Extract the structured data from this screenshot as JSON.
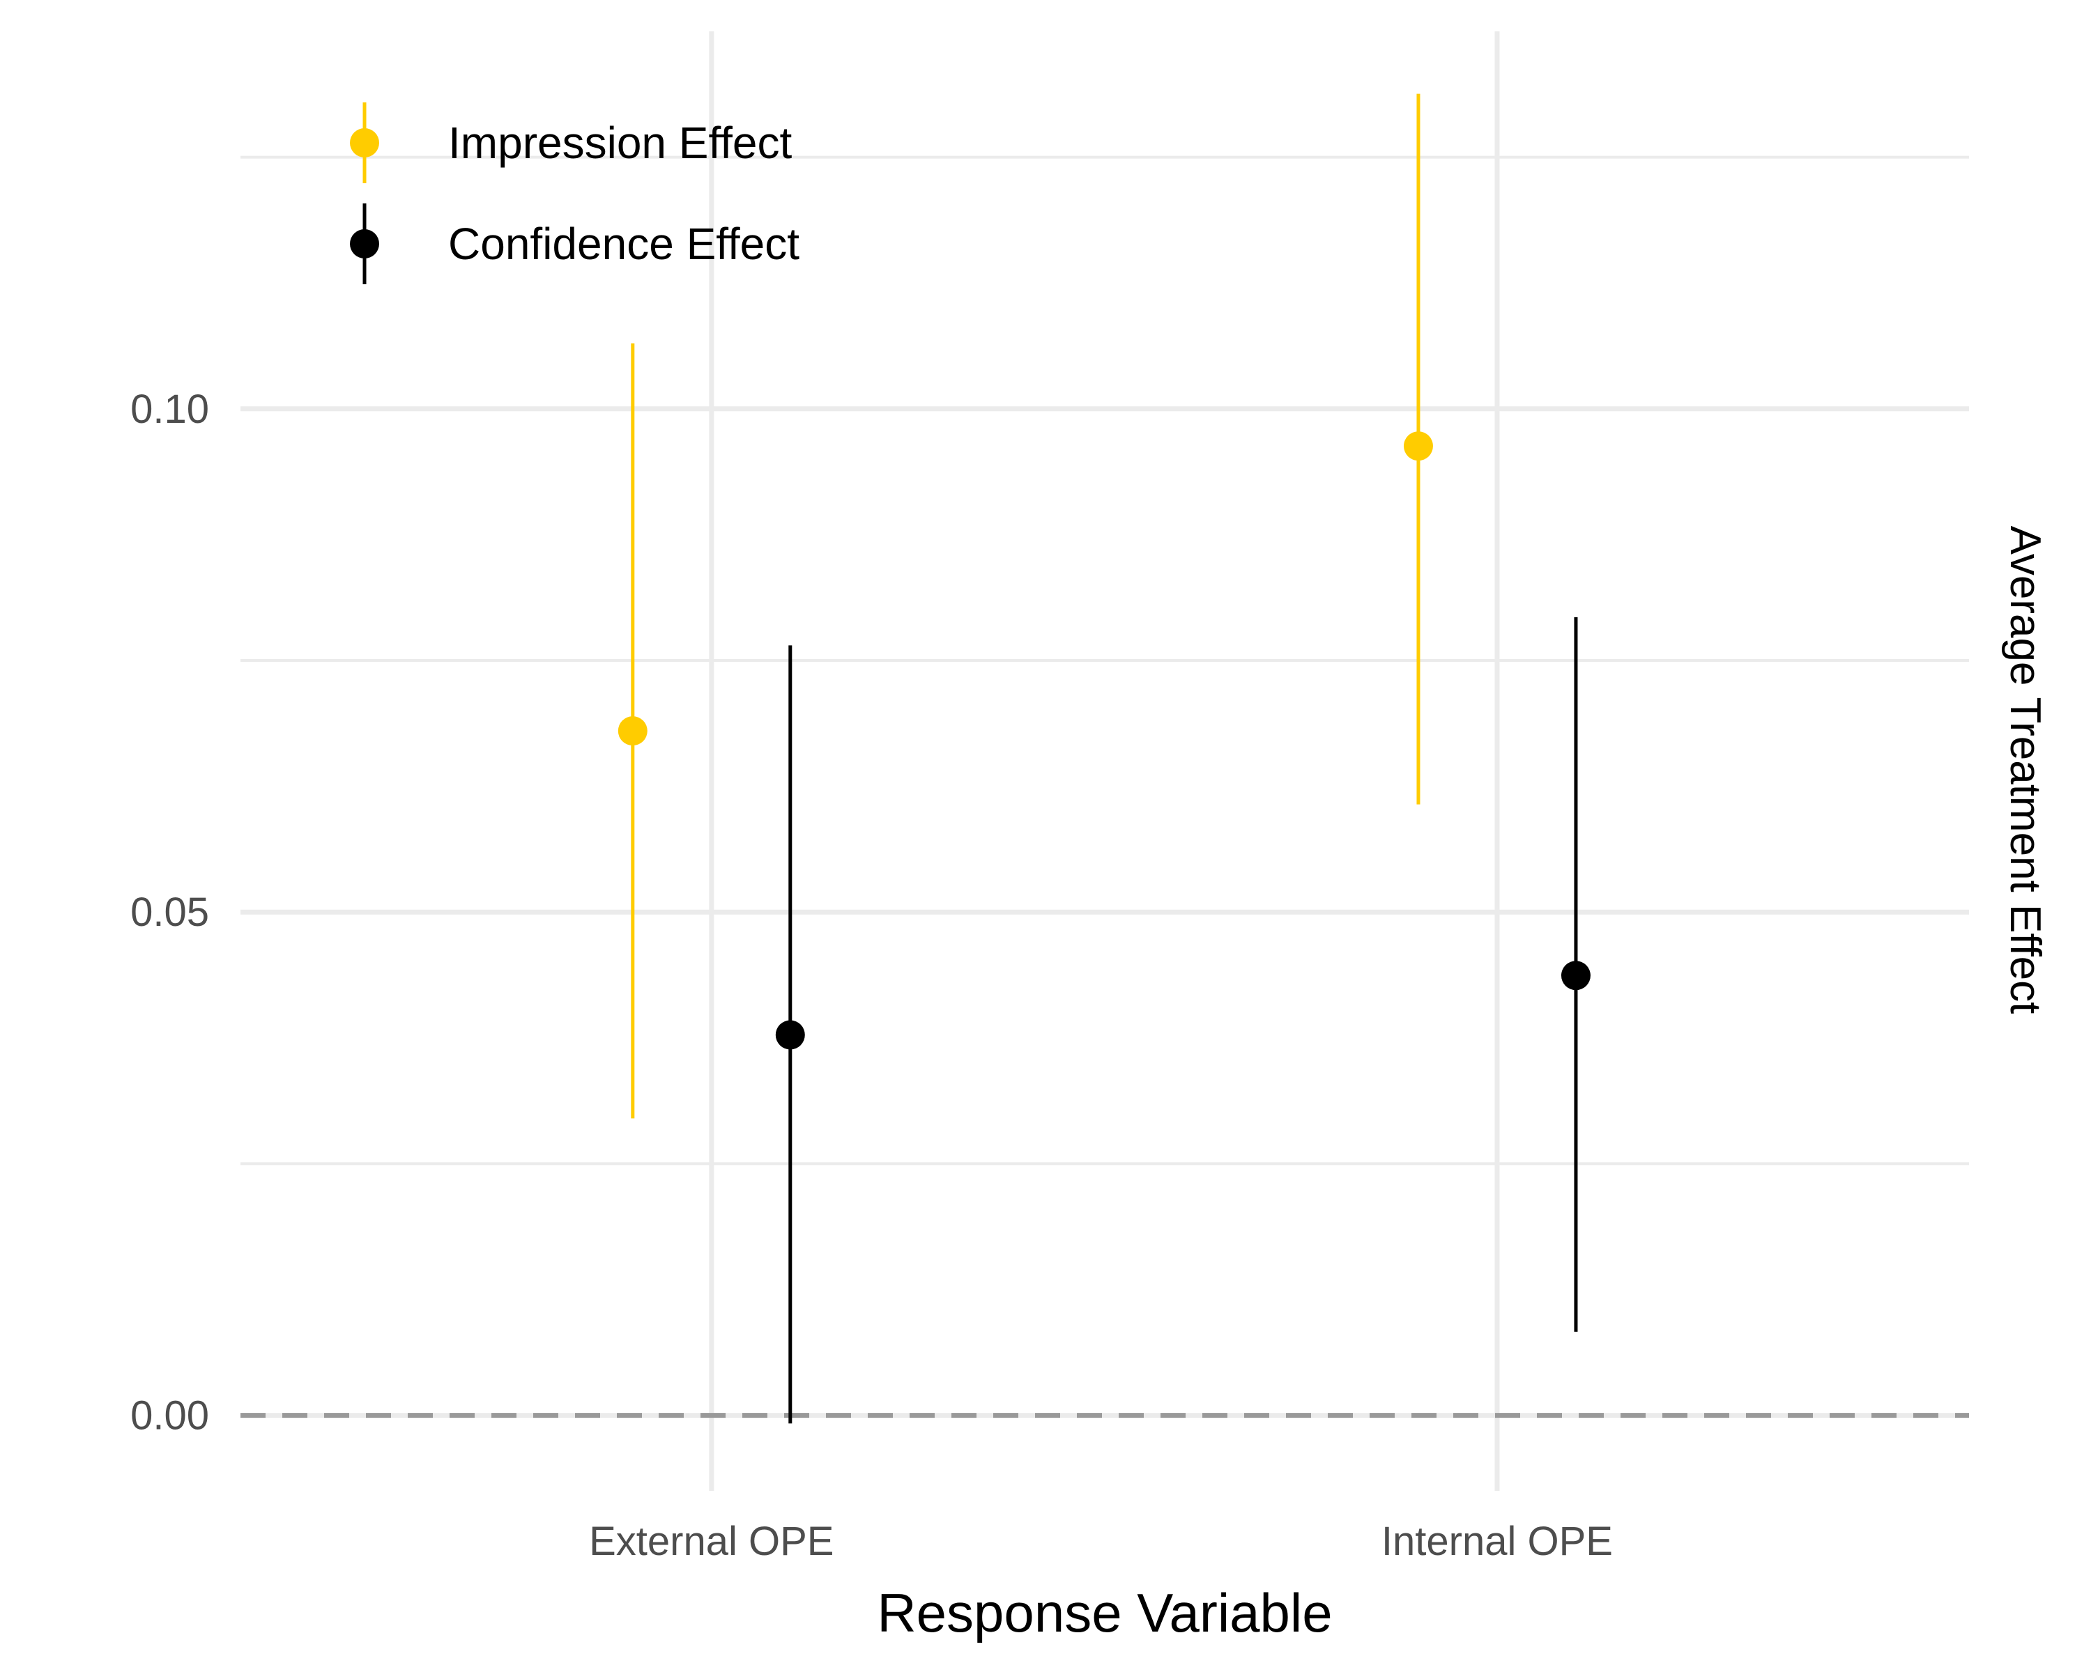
{
  "chart_data": {
    "type": "scatter",
    "subtype": "pointrange",
    "title": "",
    "xlabel": "Response Variable",
    "ylabel": "Average Treatment Effect",
    "ylabel_position": "right",
    "categories": [
      "External OPE",
      "Internal OPE"
    ],
    "ylim": [
      -0.0075,
      0.1375
    ],
    "yticks": [
      0.0,
      0.05,
      0.1
    ],
    "ytick_labels": [
      "0.00",
      "0.05",
      "0.10"
    ],
    "grid": true,
    "reference_line": {
      "y": 0.0,
      "style": "dashed",
      "color": "#999999"
    },
    "legend": {
      "placement": "top-left",
      "entries": [
        "Impression Effect",
        "Confidence Effect"
      ]
    },
    "series": [
      {
        "name": "Impression Effect",
        "color": "#FFCC00",
        "points": [
          {
            "category": "External OPE",
            "estimate": 0.068,
            "lower": 0.0295,
            "upper": 0.1065
          },
          {
            "category": "Internal OPE",
            "estimate": 0.0963,
            "lower": 0.0607,
            "upper": 0.1313
          }
        ]
      },
      {
        "name": "Confidence Effect",
        "color": "#000000",
        "points": [
          {
            "category": "External OPE",
            "estimate": 0.0378,
            "lower": -0.0008,
            "upper": 0.0765
          },
          {
            "category": "Internal OPE",
            "estimate": 0.0437,
            "lower": 0.0083,
            "upper": 0.0793
          }
        ]
      }
    ]
  }
}
